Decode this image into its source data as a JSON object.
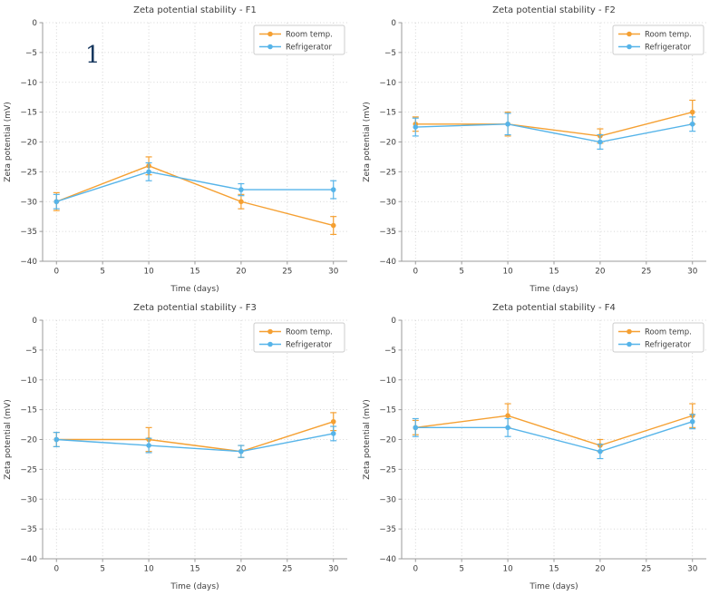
{
  "page": {
    "background": "#ffffff",
    "annotation": {
      "text": "1",
      "color": "#17375e"
    }
  },
  "chart_defaults": {
    "xlabel": "Time (days)",
    "ylabel": "Zeta potential (mV)",
    "xlim": [
      -1.5,
      31.5
    ],
    "ylim": [
      -40,
      0
    ],
    "xticks": [
      0,
      5,
      10,
      15,
      20,
      25,
      30
    ],
    "yticks": [
      0,
      -5,
      -10,
      -15,
      -20,
      -25,
      -30,
      -35,
      -40
    ],
    "grid": true,
    "grid_style": "dotted",
    "legend_position": "top-right",
    "colors": {
      "room_temp": "#f5a032",
      "refrigerator": "#56b4e9"
    }
  },
  "chart_data": [
    {
      "type": "line",
      "title": "Zeta potential stability - F1",
      "x": [
        0,
        10,
        20,
        30
      ],
      "series": [
        {
          "name": "Room temp.",
          "color": "#f5a032",
          "values": [
            -30,
            -24,
            -30,
            -34
          ],
          "errors": [
            1.5,
            1.5,
            1.2,
            1.5
          ]
        },
        {
          "name": "Refrigerator",
          "color": "#56b4e9",
          "values": [
            -30,
            -25,
            -28,
            -28
          ],
          "errors": [
            1.2,
            1.5,
            1.0,
            1.5
          ]
        }
      ]
    },
    {
      "type": "line",
      "title": "Zeta potential stability - F2",
      "x": [
        0,
        10,
        20,
        30
      ],
      "series": [
        {
          "name": "Room temp.",
          "color": "#f5a032",
          "values": [
            -17,
            -17,
            -19,
            -15
          ],
          "errors": [
            1.2,
            2.0,
            1.2,
            2.0
          ]
        },
        {
          "name": "Refrigerator",
          "color": "#56b4e9",
          "values": [
            -17.5,
            -17,
            -20,
            -17
          ],
          "errors": [
            1.5,
            1.8,
            1.2,
            1.2
          ]
        }
      ]
    },
    {
      "type": "line",
      "title": "Zeta potential stability - F3",
      "x": [
        0,
        10,
        20,
        30
      ],
      "series": [
        {
          "name": "Room temp.",
          "color": "#f5a032",
          "values": [
            -20,
            -20,
            -22,
            -17
          ],
          "errors": [
            1.2,
            2.0,
            1.0,
            1.5
          ]
        },
        {
          "name": "Refrigerator",
          "color": "#56b4e9",
          "values": [
            -20,
            -21,
            -22,
            -19
          ],
          "errors": [
            1.2,
            1.2,
            1.0,
            1.2
          ]
        }
      ]
    },
    {
      "type": "line",
      "title": "Zeta potential stability - F4",
      "x": [
        0,
        10,
        20,
        30
      ],
      "series": [
        {
          "name": "Room temp.",
          "color": "#f5a032",
          "values": [
            -18,
            -16,
            -21,
            -16
          ],
          "errors": [
            1.2,
            2.0,
            1.0,
            2.0
          ]
        },
        {
          "name": "Refrigerator",
          "color": "#56b4e9",
          "values": [
            -18,
            -18,
            -22,
            -17
          ],
          "errors": [
            1.5,
            1.5,
            1.2,
            1.2
          ]
        }
      ]
    }
  ]
}
